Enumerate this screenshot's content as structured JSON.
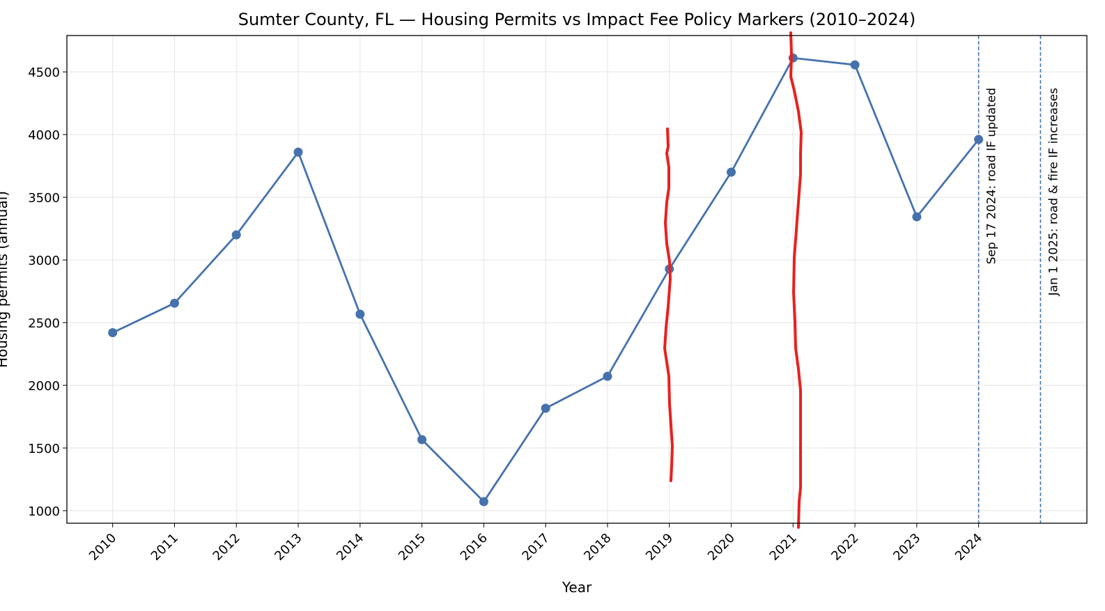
{
  "chart_data": {
    "type": "line",
    "title": "Sumter County, FL — Housing Permits vs Impact Fee Policy Markers (2010–2024)",
    "xlabel": "Year",
    "ylabel": "Housing permits (annual)",
    "x": [
      2010,
      2011,
      2012,
      2013,
      2014,
      2015,
      2016,
      2017,
      2018,
      2019,
      2020,
      2021,
      2022,
      2023,
      2024
    ],
    "x_tick_labels": [
      "2010",
      "2011",
      "2012",
      "2013",
      "2014",
      "2015",
      "2016",
      "2017",
      "2018",
      "2019",
      "2020",
      "2021",
      "2022",
      "2023",
      "2024"
    ],
    "series": [
      {
        "name": "Housing permits",
        "color": "#4572ad",
        "values": [
          2420,
          2655,
          3200,
          3860,
          2567,
          1567,
          1072,
          1817,
          2072,
          2928,
          3700,
          4611,
          4556,
          3344,
          3961
        ]
      }
    ],
    "y_ticks": [
      1000,
      1500,
      2000,
      2500,
      3000,
      3500,
      4000,
      4500
    ],
    "xlim": [
      2009.26,
      2025.75
    ],
    "ylim": [
      900,
      4790
    ],
    "grid": true,
    "annotations": [
      {
        "x": 2024,
        "label": "Sep 17 2024: road IF updated",
        "style": "dashed"
      },
      {
        "x": 2025,
        "label": "Jan 1 2025: road & fire IF increases",
        "style": "dashed"
      }
    ],
    "overlay_color": "#e8201e"
  }
}
